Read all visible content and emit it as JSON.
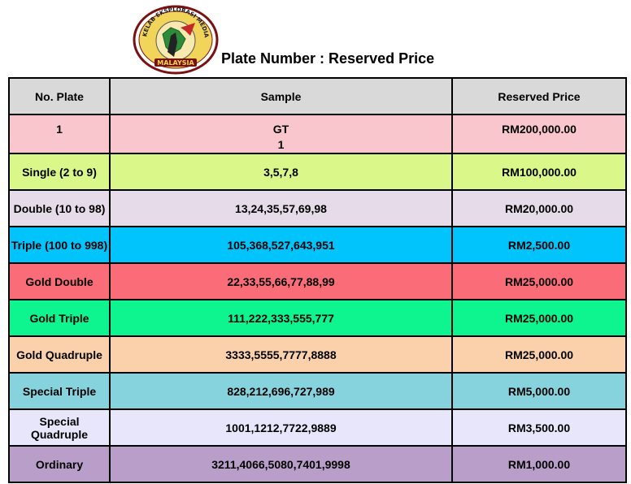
{
  "header": {
    "title": "Plate Number : Reserved Price",
    "logo_text_top": "KELAB EKSPLORASI MEDIA",
    "logo_text_bottom": "MALAYSIA"
  },
  "table": {
    "columns": [
      "No. Plate",
      "Sample",
      "Reserved Price"
    ],
    "rows": [
      {
        "plate": "1",
        "sample_line1": "GT",
        "sample_line2": "1",
        "price": "RM200,000.00",
        "color": "#f8c6cc"
      },
      {
        "plate": "Single (2 to 9)",
        "sample": "3,5,7,8",
        "price": "RM100,000.00",
        "color": "#daf789"
      },
      {
        "plate": "Double (10 to 98)",
        "sample": "13,24,35,57,69,98",
        "price": "RM20,000.00",
        "color": "#e6dbe8"
      },
      {
        "plate": "Triple (100 to 998)",
        "sample": "105,368,527,643,951",
        "price": "RM2,500.00",
        "color": "#00c4fb"
      },
      {
        "plate": "Gold Double",
        "sample": "22,33,55,66,77,88,99",
        "price": "RM25,000.00",
        "color": "#fa6c78"
      },
      {
        "plate": "Gold Triple",
        "sample": "111,222,333,555,777",
        "price": "RM25,000.00",
        "color": "#0ef48f"
      },
      {
        "plate": "Gold Quadruple",
        "sample": "3333,5555,7777,8888",
        "price": "RM25,000.00",
        "color": "#fbd1ab"
      },
      {
        "plate": "Special Triple",
        "sample": "828,212,696,727,989",
        "price": "RM5,000.00",
        "color": "#86d3de"
      },
      {
        "plate": "Special Quadruple",
        "sample": "1001,1212,7722,9889",
        "price": "RM3,500.00",
        "color": "#e8e6fb"
      },
      {
        "plate": "Ordinary",
        "sample": "3211,4066,5080,7401,9998",
        "price": "RM1,000.00",
        "color": "#b99ec9"
      }
    ]
  }
}
